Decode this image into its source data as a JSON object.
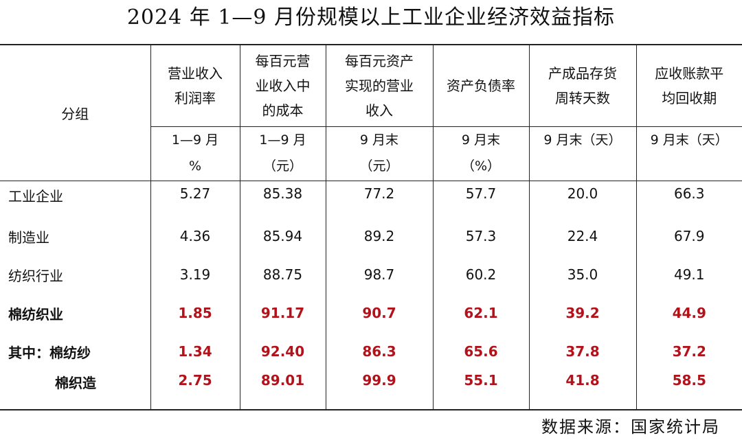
{
  "title": "2024 年 1—9 月份规模以上工业企业经济效益指标",
  "table": {
    "group_header": "分组",
    "columns": [
      {
        "lines": [
          "营业收入",
          "利润率"
        ],
        "unit_lines": [
          "1—9 月",
          "%"
        ]
      },
      {
        "lines": [
          "每百元营",
          "业收入中",
          "的成本"
        ],
        "unit_lines": [
          "1—9 月",
          "（元）"
        ]
      },
      {
        "lines": [
          "每百元资产",
          "实现的营业",
          "收入"
        ],
        "unit_lines": [
          "9 月末",
          "（元）"
        ]
      },
      {
        "lines": [
          "资产负债率"
        ],
        "unit_lines": [
          "9 月末",
          "（%）"
        ]
      },
      {
        "lines": [
          "产成品存货",
          "周转天数"
        ],
        "unit_lines": [
          "9 月末（天）"
        ]
      },
      {
        "lines": [
          "应收账款平",
          "均回收期"
        ],
        "unit_lines": [
          "9 月末（天）"
        ]
      }
    ],
    "rows": [
      {
        "label": "工业企业",
        "values": [
          "5.27",
          "85.38",
          "77.2",
          "57.7",
          "20.0",
          "66.3"
        ],
        "highlight": false
      },
      {
        "label": "制造业",
        "values": [
          "4.36",
          "85.94",
          "89.2",
          "57.3",
          "22.4",
          "67.9"
        ],
        "highlight": false
      },
      {
        "label": "纺织行业",
        "values": [
          "3.19",
          "88.75",
          "98.7",
          "60.2",
          "35.0",
          "49.1"
        ],
        "highlight": false
      },
      {
        "label": "棉纺织业",
        "values": [
          "1.85",
          "91.17",
          "90.7",
          "62.1",
          "39.2",
          "44.9"
        ],
        "highlight": true
      },
      {
        "label": "其中：棉纺纱",
        "values": [
          "1.34",
          "92.40",
          "86.3",
          "65.6",
          "37.8",
          "37.2"
        ],
        "highlight": true
      },
      {
        "label": "棉织造",
        "values": [
          "2.75",
          "89.01",
          "99.9",
          "55.1",
          "41.8",
          "58.5"
        ],
        "highlight": true
      }
    ]
  },
  "source": "数据来源：国家统计局",
  "colors": {
    "highlight_red": "#b3121b",
    "rule": "#222222"
  }
}
